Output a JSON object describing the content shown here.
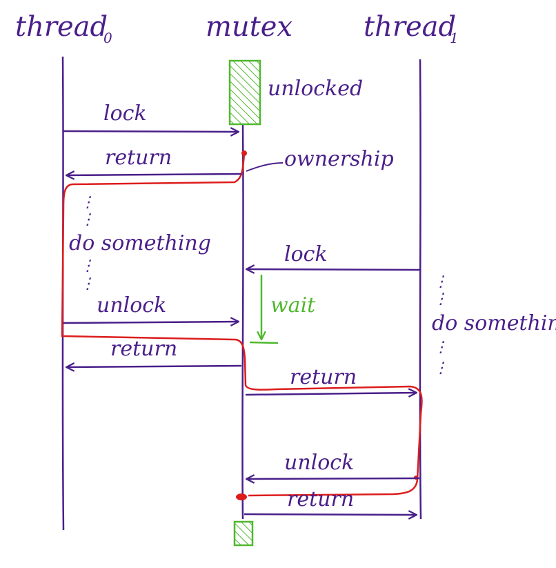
{
  "colors": {
    "ink": "#4a1f8a",
    "ownership": "#dd1c1c",
    "mutex_box": "#4fb82e"
  },
  "headers": {
    "thread0": "thread",
    "thread0_sub": "0",
    "mutex": "mutex",
    "thread1": "thread",
    "thread1_sub": "1"
  },
  "labels": {
    "unlocked": "unlocked",
    "ownership": "ownership",
    "t0_lock": "lock",
    "t0_return1": "return",
    "t0_do_something": "do something",
    "t0_unlock": "unlock",
    "t0_return2": "return",
    "t1_lock": "lock",
    "wait": "wait",
    "t1_do_something": "do something",
    "t1_return1": "return",
    "t1_unlock": "unlock",
    "t1_return2": "return"
  }
}
